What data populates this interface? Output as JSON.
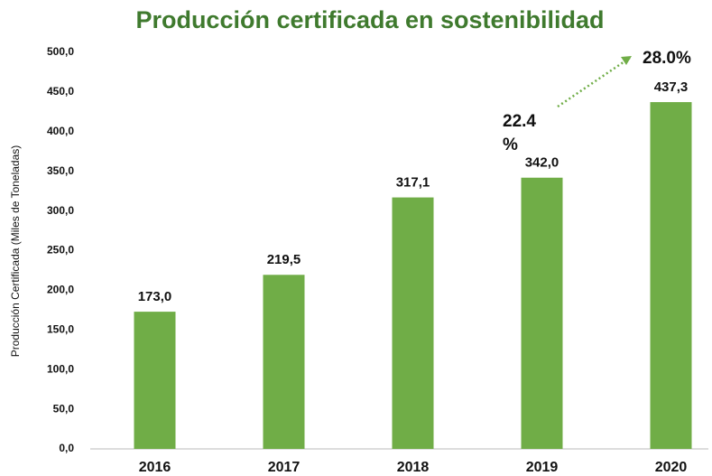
{
  "chart_data": {
    "type": "bar",
    "title": "Producción certificada en sostenibilidad",
    "y_label": "Producción Certificada (Miles de Toneladas)",
    "categories": [
      "2016",
      "2017",
      "2018",
      "2019",
      "2020"
    ],
    "values": [
      173.0,
      219.5,
      317.1,
      342.0,
      437.3
    ],
    "value_labels": [
      "173,0",
      "219,5",
      "317,1",
      "342,0",
      "437,3"
    ],
    "color": "#70ad47",
    "ylim": [
      0,
      500
    ],
    "yticks": [
      {
        "value": 0,
        "label": "0,0"
      },
      {
        "value": 50,
        "label": "50,0"
      },
      {
        "value": 100,
        "label": "100,0"
      },
      {
        "value": 150,
        "label": "150,0"
      },
      {
        "value": 200,
        "label": "200,0"
      },
      {
        "value": 250,
        "label": "250,0"
      },
      {
        "value": 300,
        "label": "300,0"
      },
      {
        "value": 350,
        "label": "350,0"
      },
      {
        "value": 400,
        "label": "400,0"
      },
      {
        "value": 450,
        "label": "450,0"
      },
      {
        "value": 500,
        "label": "500,0"
      }
    ],
    "annotations": [
      "22.4 %",
      "28.0%"
    ]
  }
}
